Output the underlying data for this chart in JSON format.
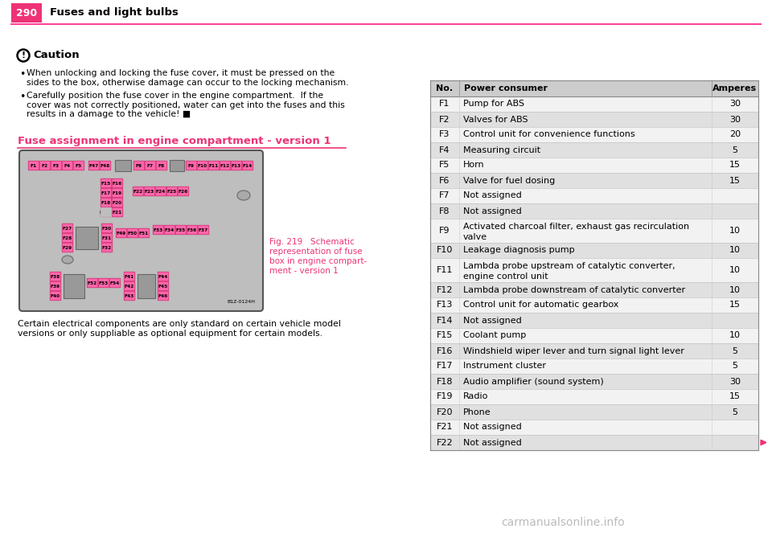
{
  "page_num": "290",
  "header_text": "Fuses and light bulbs",
  "header_pink_bg": "#EE3377",
  "header_line_color": "#FF4499",
  "caution_title": "Caution",
  "caution_b1_lines": [
    "When unlocking and locking the fuse cover, it must be pressed on the",
    "sides to the box, otherwise damage can occur to the locking mechanism."
  ],
  "caution_b2_lines": [
    "Carefully position the fuse cover in the engine compartment.  If the",
    "cover was not correctly positioned, water can get into the fuses and this",
    "results in a damage to the vehicle!"
  ],
  "section_title": "Fuse assignment in engine compartment - version 1",
  "section_title_color": "#EE3377",
  "fig_caption_lines": [
    "Fig. 219   Schematic",
    "representation of fuse",
    "box in engine compart-",
    "ment - version 1"
  ],
  "fig_caption_color": "#EE3377",
  "body_text_lines": [
    "Certain electrical components are only standard on certain vehicle model",
    "versions or only suppliable as optional equipment for certain models."
  ],
  "diagram_bg": "#BEBEBE",
  "fuse_color": "#FF66AA",
  "fuse_edge": "#CC2266",
  "gray_box_color": "#999999",
  "oval_color": "#AAAAAA",
  "diagram_code": "B1Z-0124H",
  "table_header_bg": "#CCCCCC",
  "table_alt_bg": "#E0E0E0",
  "table_white_bg": "#F2F2F2",
  "table_col_no": "No.",
  "table_col_consumer": "Power consumer",
  "table_col_amperes": "Amperes",
  "table_rows": [
    [
      "F1",
      "Pump for ABS",
      "30"
    ],
    [
      "F2",
      "Valves for ABS",
      "30"
    ],
    [
      "F3",
      "Control unit for convenience functions",
      "20"
    ],
    [
      "F4",
      "Measuring circuit",
      "5"
    ],
    [
      "F5",
      "Horn",
      "15"
    ],
    [
      "F6",
      "Valve for fuel dosing",
      "15"
    ],
    [
      "F7",
      "Not assigned",
      ""
    ],
    [
      "F8",
      "Not assigned",
      ""
    ],
    [
      "F9",
      "Activated charcoal filter, exhaust gas recirculation\nvalve",
      "10"
    ],
    [
      "F10",
      "Leakage diagnosis pump",
      "10"
    ],
    [
      "F11",
      "Lambda probe upstream of catalytic converter,\nengine control unit",
      "10"
    ],
    [
      "F12",
      "Lambda probe downstream of catalytic converter",
      "10"
    ],
    [
      "F13",
      "Control unit for automatic gearbox",
      "15"
    ],
    [
      "F14",
      "Not assigned",
      ""
    ],
    [
      "F15",
      "Coolant pump",
      "10"
    ],
    [
      "F16",
      "Windshield wiper lever and turn signal light lever",
      "5"
    ],
    [
      "F17",
      "Instrument cluster",
      "5"
    ],
    [
      "F18",
      "Audio amplifier (sound system)",
      "30"
    ],
    [
      "F19",
      "Radio",
      "15"
    ],
    [
      "F20",
      "Phone",
      "5"
    ],
    [
      "F21",
      "Not assigned",
      ""
    ],
    [
      "F22",
      "Not assigned",
      ""
    ]
  ],
  "watermark": "carmanualsonline.info",
  "arrow_color": "#EE3377"
}
